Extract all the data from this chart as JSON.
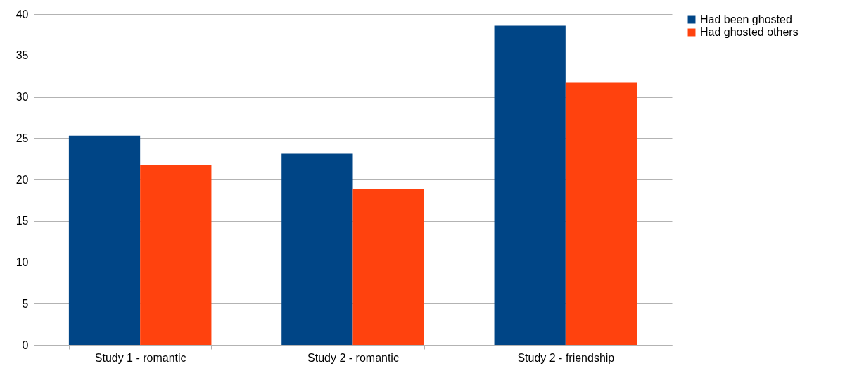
{
  "chart_data": {
    "type": "bar",
    "categories": [
      "Study 1 - romantic",
      "Study 2 - romantic",
      "Study 2 - friendship"
    ],
    "series": [
      {
        "name": "Had been ghosted",
        "color": "#004586",
        "values": [
          25.3,
          23.1,
          38.6
        ]
      },
      {
        "name": "Had ghosted others",
        "color": "#ff420e",
        "values": [
          21.7,
          18.9,
          31.7
        ]
      }
    ],
    "ylim": [
      0,
      40
    ],
    "yticks": [
      0,
      5,
      10,
      15,
      20,
      25,
      30,
      35,
      40
    ],
    "grid": "y",
    "legend": "right"
  }
}
